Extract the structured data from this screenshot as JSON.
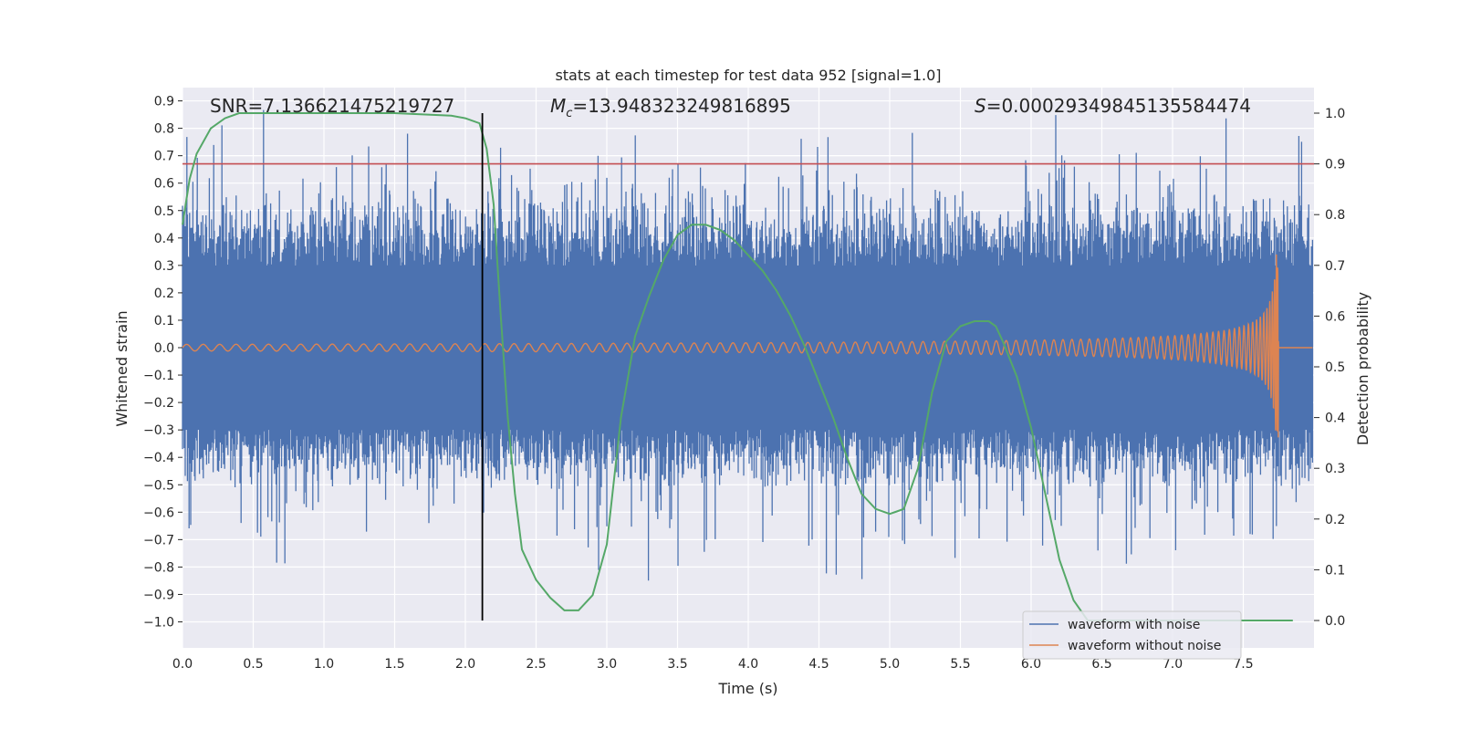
{
  "chart_data": {
    "type": "line",
    "title": "stats at each timestep for test data 952 [signal=1.0]",
    "xlabel": "Time (s)",
    "ylabel_left": "Whitened strain",
    "ylabel_right": "Detection probability",
    "xlim": [
      0.0,
      8.0
    ],
    "ylim_left": [
      -1.09,
      0.95
    ],
    "ylim_right": [
      -0.05,
      1.04
    ],
    "x_ticks": [
      "0.0",
      "0.5",
      "1.0",
      "1.5",
      "2.0",
      "2.5",
      "3.0",
      "3.5",
      "4.0",
      "4.5",
      "5.0",
      "5.5",
      "6.0",
      "6.5",
      "7.0",
      "7.5"
    ],
    "y_left_ticks": [
      "0.9",
      "0.8",
      "0.7",
      "0.6",
      "0.5",
      "0.4",
      "0.3",
      "0.2",
      "0.1",
      "0.0",
      "−0.1",
      "−0.2",
      "−0.3",
      "−0.4",
      "−0.5",
      "−0.6",
      "−0.7",
      "−0.8",
      "−0.9",
      "−1.0"
    ],
    "y_right_ticks": [
      "1.0",
      "0.9",
      "0.8",
      "0.7",
      "0.6",
      "0.5",
      "0.4",
      "0.3",
      "0.2",
      "0.1",
      "0.0"
    ],
    "grid": true,
    "legend_position": "bottom-right",
    "annotations": {
      "snr": "SNR=7.136621475219727",
      "mc_symbol": "M",
      "mc_sub": "c",
      "mc_value": "=13.948323249816895",
      "s_symbol": "S",
      "s_value": "=0.0002934984513558447 4"
    },
    "threshold_probability": 0.9,
    "detection_time": 2.12,
    "series": [
      {
        "name": "waveform with noise",
        "axis": "left",
        "color": "#4c72b0",
        "description_x_range": [
          0.0,
          7.99
        ],
        "envelope_upper": 0.5,
        "envelope_lower": -0.4
      },
      {
        "name": "waveform without noise",
        "axis": "left",
        "color": "#dd8452",
        "chirp_end_time": 7.75,
        "amplitude_start": 0.012,
        "amplitude_end": 0.34
      },
      {
        "name": "detection probability",
        "axis": "right",
        "color": "#55a868",
        "x": [
          0.0,
          0.05,
          0.1,
          0.2,
          0.3,
          0.4,
          0.6,
          0.8,
          1.0,
          1.5,
          1.9,
          2.0,
          2.1,
          2.15,
          2.2,
          2.25,
          2.3,
          2.35,
          2.4,
          2.5,
          2.6,
          2.7,
          2.8,
          2.9,
          3.0,
          3.1,
          3.2,
          3.3,
          3.4,
          3.5,
          3.6,
          3.7,
          3.8,
          3.9,
          4.0,
          4.1,
          4.2,
          4.3,
          4.4,
          4.5,
          4.6,
          4.7,
          4.8,
          4.9,
          5.0,
          5.05,
          5.1,
          5.2,
          5.3,
          5.4,
          5.5,
          5.6,
          5.7,
          5.75,
          5.8,
          5.9,
          6.0,
          6.1,
          6.2,
          6.3,
          6.4,
          6.5,
          7.0,
          7.5,
          7.85
        ],
        "y": [
          0.78,
          0.87,
          0.92,
          0.97,
          0.99,
          1.0,
          1.0,
          1.0,
          1.0,
          1.0,
          0.995,
          0.99,
          0.98,
          0.93,
          0.82,
          0.6,
          0.4,
          0.25,
          0.14,
          0.08,
          0.045,
          0.02,
          0.02,
          0.05,
          0.15,
          0.4,
          0.56,
          0.64,
          0.71,
          0.76,
          0.78,
          0.78,
          0.77,
          0.75,
          0.72,
          0.69,
          0.65,
          0.6,
          0.54,
          0.47,
          0.4,
          0.32,
          0.25,
          0.22,
          0.21,
          0.215,
          0.22,
          0.3,
          0.45,
          0.55,
          0.58,
          0.59,
          0.59,
          0.58,
          0.55,
          0.48,
          0.38,
          0.25,
          0.12,
          0.04,
          0.0,
          0.0,
          0.0,
          0.0,
          0.0
        ]
      },
      {
        "name": "threshold",
        "axis": "right",
        "color": "#c44e52",
        "value": 0.9
      }
    ]
  }
}
